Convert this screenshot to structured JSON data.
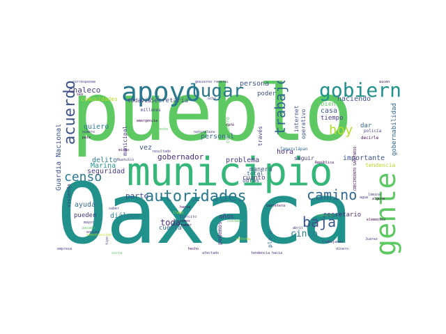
{
  "words": {
    "oaxaca": "Oaxaca",
    "pueblo": "pueblo",
    "municipio": "municipio",
    "apoyo": "apoyo",
    "gente": "gente",
    "gobierno": "gobierno",
    "lugar": "lugar",
    "autoridades": "autoridades",
    "acuerdo": "acuerdo",
    "censo": "censo",
    "camino": "camino",
    "hoy": "hoy",
    "trabajo": "trabajo",
    "baja": "baja",
    "toda": "toda",
    "guardia_nacional": "Guardia Nacional",
    "chaleco": "chaleco",
    "gobernador": "gobernador",
    "parte": "parte",
    "marina": "Marina",
    "seguridad": "seguridad",
    "cinco": "cinco",
    "ayuda": "ayuda",
    "pueden": "pueden",
    "dialogo": "diálogo",
    "importante": "importante",
    "haciendo": "haciendo",
    "gobernabilidad": "gobernabilidad",
    "persona": "persona",
    "poder": "poder",
    "problema": "problema",
    "hora": "hora",
    "casa": "casa",
    "tiempo": "tiempo",
    "bien": "bien",
    "dar": "dar",
    "vez": "vez",
    "delito": "delito",
    "personal": "personal",
    "quiero": "quiero",
    "municipal": "municipal",
    "secretaria": "Secretaría",
    "todavia": "todavía",
    "comunidades": "comunidades",
    "manera": "manera",
    "cuanto": "cuanto",
    "total": "total",
    "obras": "obras",
    "secretario": "secretario",
    "anos": "años",
    "cuenta": "cuenta",
    "podemos": "podemos",
    "placa": "placa",
    "seguir": "seguir",
    "tendencia": "tendencia",
    "companero": "compañero",
    "traves": "través",
    "internet": "internet",
    "operativo": "operativo",
    "vivienda": "vivienda",
    "millones": "millones",
    "emergencia": "emergencia",
    "corresponde": "corresponde",
    "sea": "sea",
    "gobierno_federal": "gobierno Federal",
    "dicen": "dicen",
    "ocho": "ocho",
    "pais": "país",
    "numero": "número",
    "mismo": "mismo",
    "resultado": "resultado",
    "tamazulapan": "Tamazulápan",
    "republica": "República",
    "policia": "policía",
    "decirle": "decirle",
    "huatulco": "Huatulco",
    "derecho": "derecho",
    "naturaleza": "naturaleza",
    "cafe": "café",
    "mayor": "mayor",
    "pasado": "pasado",
    "equipo": "equipo",
    "construccion": "construcción",
    "tipo": "tipo",
    "hecho": "hecho",
    "afectado": "afectado",
    "tendencia_hacia": "tendencia hacia",
    "empresa": "empresa",
    "costa": "costa",
    "carretera": "carretera",
    "agua": "agua",
    "alguna": "alguna",
    "lamina": "lámina",
    "elementos": "elementos",
    "supuesto": "supuesto",
    "trabajando": "trabajando",
    "abril": "abril",
    "juarez": "Juárez",
    "crecimiento_sanitario": "CRECIMIENTO SANITARIO",
    "llego": "llegó",
    "saber": "saber",
    "hacia": "hacia",
    "ejercito": "Ejército",
    "semos": "semos",
    "cuidado": "cuidado",
    "reforma": "reforma",
    "dinero": "dinero",
    "haber": "haber"
  },
  "colors": {
    "yellow_green": "#b5de2b",
    "green": "#5ec962",
    "teal_green": "#35b779",
    "aqua": "#21918c",
    "teal": "#2a788e",
    "blue": "#31688e",
    "slate": "#3b528b",
    "indigo": "#443983",
    "purple": "#482878",
    "dark": "#440154"
  }
}
